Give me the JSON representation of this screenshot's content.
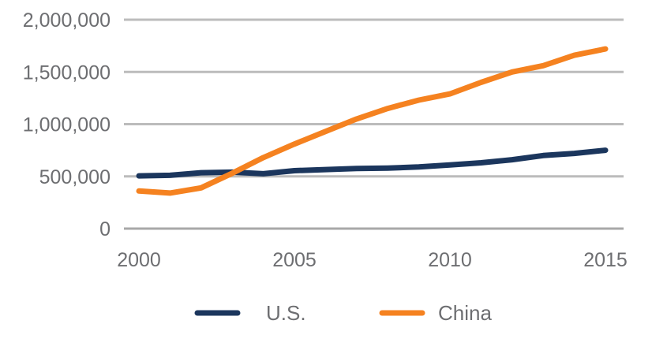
{
  "chart_data": {
    "type": "line",
    "title": "",
    "xlabel": "",
    "ylabel": "",
    "x": [
      2000,
      2001,
      2002,
      2003,
      2004,
      2005,
      2006,
      2007,
      2008,
      2009,
      2010,
      2011,
      2012,
      2013,
      2014,
      2015
    ],
    "series": [
      {
        "name": "U.S.",
        "color": "#1b365d",
        "values": [
          505000,
          510000,
          535000,
          540000,
          525000,
          555000,
          565000,
          575000,
          580000,
          590000,
          610000,
          630000,
          660000,
          700000,
          720000,
          750000
        ]
      },
      {
        "name": "China",
        "color": "#f58220",
        "values": [
          360000,
          340000,
          390000,
          530000,
          680000,
          810000,
          930000,
          1050000,
          1150000,
          1230000,
          1290000,
          1400000,
          1500000,
          1560000,
          1660000,
          1720000
        ]
      }
    ],
    "ylim": [
      0,
      2000000
    ],
    "xlim": [
      2000,
      2015
    ],
    "yticks": [
      0,
      500000,
      1000000,
      1500000,
      2000000
    ],
    "ytick_labels": [
      "0",
      "500,000",
      "1,000,000",
      "1,500,000",
      "2,000,000"
    ],
    "xticks": [
      2000,
      2005,
      2010,
      2015
    ],
    "xtick_labels": [
      "2000",
      "2005",
      "2010",
      "2015"
    ],
    "grid": true,
    "legend": {
      "position": "bottom-center",
      "entries": [
        "U.S.",
        "China"
      ]
    }
  },
  "colors": {
    "grid": "#bcbcbc",
    "text": "#6d6e71"
  }
}
